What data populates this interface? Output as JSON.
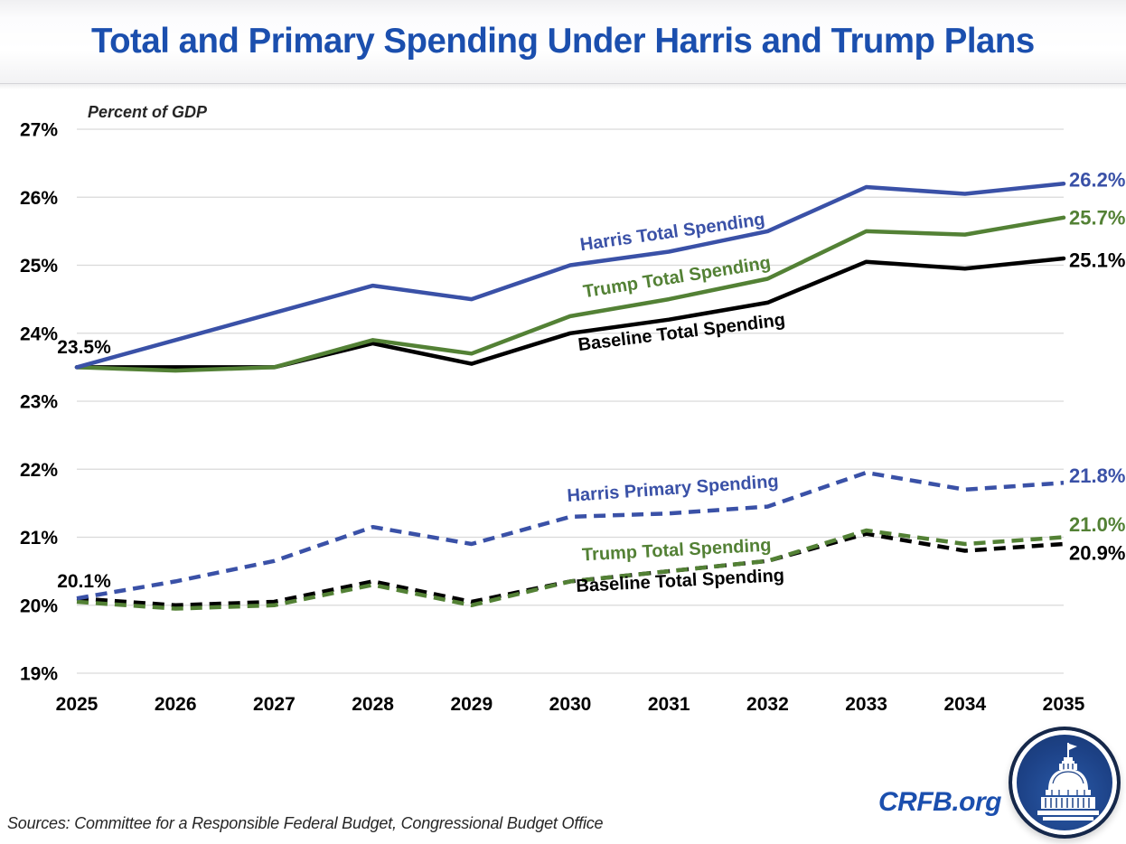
{
  "header": {
    "title": "Total and Primary Spending Under Harris and Trump Plans"
  },
  "chart_data": {
    "type": "line",
    "title": "Total and Primary Spending Under Harris and Trump Plans",
    "axis_note": "Percent of GDP",
    "x": [
      2025,
      2026,
      2027,
      2028,
      2029,
      2030,
      2031,
      2032,
      2033,
      2034,
      2035
    ],
    "xlabel": "",
    "ylabel": "Percent of GDP",
    "ylim": [
      19,
      27
    ],
    "yticks": [
      19,
      20,
      21,
      22,
      23,
      24,
      25,
      26,
      27
    ],
    "ytick_suffix": "%",
    "grid": true,
    "legend_position": "inline-labels",
    "series": [
      {
        "name": "Harris Total Spending",
        "line_style": "solid",
        "color": "#3A51A7",
        "values": [
          23.5,
          23.9,
          24.3,
          24.7,
          24.5,
          25.0,
          25.2,
          25.5,
          26.15,
          26.05,
          26.2
        ],
        "end_label": "26.2%",
        "end_label_dy": -4
      },
      {
        "name": "Trump Total Spending",
        "line_style": "solid",
        "color": "#538135",
        "values": [
          23.5,
          23.45,
          23.5,
          23.9,
          23.7,
          24.25,
          24.5,
          24.8,
          25.5,
          25.45,
          25.7
        ],
        "end_label": "25.7%",
        "end_label_dy": 0
      },
      {
        "name": "Baseline Total Spending",
        "line_style": "solid",
        "color": "#000000",
        "values": [
          23.5,
          23.5,
          23.5,
          23.85,
          23.55,
          24.0,
          24.2,
          24.45,
          25.05,
          24.95,
          25.1
        ],
        "end_label": "25.1%",
        "end_label_dy": 2
      },
      {
        "name": "Harris Primary Spending",
        "line_style": "dashed",
        "color": "#3A51A7",
        "values": [
          20.1,
          20.35,
          20.65,
          21.15,
          20.9,
          21.3,
          21.35,
          21.45,
          21.95,
          21.7,
          21.8
        ],
        "end_label": "21.8%",
        "end_label_dy": -8
      },
      {
        "name": "Trump Total Spending",
        "line_style": "dashed",
        "color": "#538135",
        "values": [
          20.05,
          19.95,
          20.0,
          20.3,
          20.0,
          20.35,
          20.5,
          20.65,
          21.1,
          20.9,
          21.0
        ],
        "end_label": "21.0%",
        "end_label_dy": -14
      },
      {
        "name": "Baseline Total Spending",
        "line_style": "dashed",
        "color": "#000000",
        "values": [
          20.1,
          20.0,
          20.05,
          20.35,
          20.05,
          20.35,
          20.5,
          20.65,
          21.05,
          20.8,
          20.9
        ],
        "end_label": "20.9%",
        "end_label_dy": 10
      }
    ],
    "point_labels": [
      {
        "text": "23.5%",
        "x": 93,
        "y": 391,
        "color": "#000000"
      },
      {
        "text": "20.1%",
        "x": 93,
        "y": 650,
        "color": "#000000"
      }
    ],
    "series_labels": [
      {
        "text": "Harris Total Spending",
        "x": 745,
        "y": 263,
        "angle": -8,
        "color": "#3A51A7"
      },
      {
        "text": "Trump Total Spending",
        "x": 750,
        "y": 313,
        "angle": -9,
        "color": "#538135"
      },
      {
        "text": "Baseline Total Spending",
        "x": 755,
        "y": 374,
        "angle": -7,
        "color": "#000000"
      },
      {
        "text": "Harris Primary Spending",
        "x": 745,
        "y": 547,
        "angle": -4,
        "color": "#3A51A7"
      },
      {
        "text": "Trump Total Spending",
        "x": 749,
        "y": 615,
        "angle": -3,
        "color": "#538135"
      },
      {
        "text": "Baseline Total Spending",
        "x": 753,
        "y": 649,
        "angle": -3,
        "color": "#000000"
      }
    ]
  },
  "footer": {
    "sources": "Sources: Committee for a Responsible Federal Budget, Congressional Budget Office",
    "site": "CRFB.org"
  },
  "colors": {
    "title_blue": "#1B4FAE",
    "harris_blue": "#3A51A7",
    "trump_green": "#538135",
    "baseline_black": "#000000",
    "gridline": "#D9D9D9"
  }
}
